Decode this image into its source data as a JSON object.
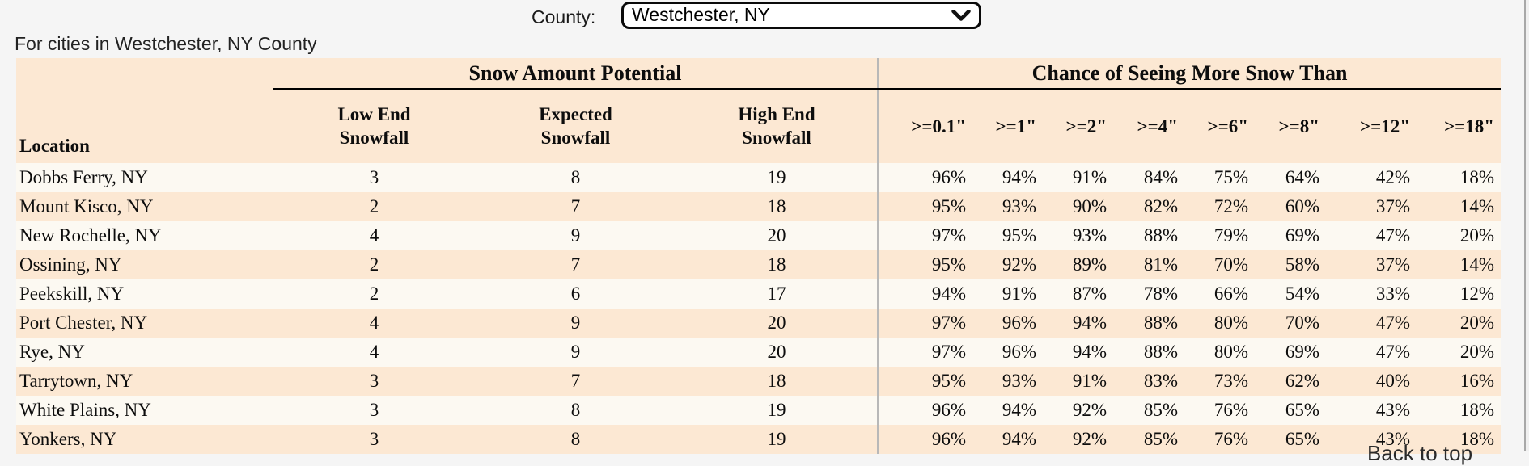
{
  "county_selector": {
    "label": "County:",
    "selected": "Westchester, NY"
  },
  "subtitle": "For cities in Westchester, NY County",
  "table": {
    "group_headers": {
      "snow_amount": "Snow Amount Potential",
      "chance": "Chance of Seeing More Snow Than"
    },
    "location_header": "Location",
    "snow_columns": [
      {
        "line1": "Low End",
        "line2": "Snowfall"
      },
      {
        "line1": "Expected",
        "line2": "Snowfall"
      },
      {
        "line1": "High End",
        "line2": "Snowfall"
      }
    ],
    "chance_columns": [
      ">=0.1\"",
      ">=1\"",
      ">=2\"",
      ">=4\"",
      ">=6\"",
      ">=8\"",
      ">=12\"",
      ">=18\""
    ],
    "rows": [
      [
        "Dobbs Ferry, NY",
        "3",
        "8",
        "19",
        "96%",
        "94%",
        "91%",
        "84%",
        "75%",
        "64%",
        "42%",
        "18%"
      ],
      [
        "Mount Kisco, NY",
        "2",
        "7",
        "18",
        "95%",
        "93%",
        "90%",
        "82%",
        "72%",
        "60%",
        "37%",
        "14%"
      ],
      [
        "New Rochelle, NY",
        "4",
        "9",
        "20",
        "97%",
        "95%",
        "93%",
        "88%",
        "79%",
        "69%",
        "47%",
        "20%"
      ],
      [
        "Ossining, NY",
        "2",
        "7",
        "18",
        "95%",
        "92%",
        "89%",
        "81%",
        "70%",
        "58%",
        "37%",
        "14%"
      ],
      [
        "Peekskill, NY",
        "2",
        "6",
        "17",
        "94%",
        "91%",
        "87%",
        "78%",
        "66%",
        "54%",
        "33%",
        "12%"
      ],
      [
        "Port Chester, NY",
        "4",
        "9",
        "20",
        "97%",
        "96%",
        "94%",
        "88%",
        "80%",
        "70%",
        "47%",
        "20%"
      ],
      [
        "Rye, NY",
        "4",
        "9",
        "20",
        "97%",
        "96%",
        "94%",
        "88%",
        "80%",
        "69%",
        "47%",
        "20%"
      ],
      [
        "Tarrytown, NY",
        "3",
        "7",
        "18",
        "95%",
        "93%",
        "91%",
        "83%",
        "73%",
        "62%",
        "40%",
        "16%"
      ],
      [
        "White Plains, NY",
        "3",
        "8",
        "19",
        "96%",
        "94%",
        "92%",
        "85%",
        "76%",
        "65%",
        "43%",
        "18%"
      ],
      [
        "Yonkers, NY",
        "3",
        "8",
        "19",
        "96%",
        "94%",
        "92%",
        "85%",
        "76%",
        "65%",
        "43%",
        "18%"
      ]
    ]
  },
  "back_to_top": "Back to top",
  "colors": {
    "header_peach": "#fce8d3",
    "row_light": "#fcf9f2",
    "page_bg": "#f5f5f5",
    "divider_gray": "#b8b8b8"
  }
}
